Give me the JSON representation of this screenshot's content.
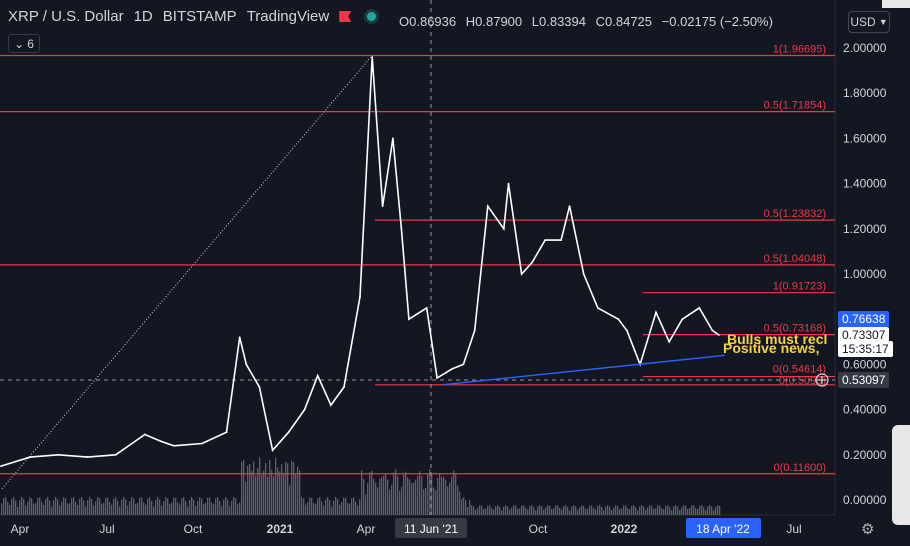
{
  "header": {
    "symbol": "XRP / U.S. Dollar",
    "interval": "1D",
    "exchange": "BITSTAMP",
    "provider": "TradingView",
    "ohlc": {
      "o_label": "O",
      "open": "0.86936",
      "h_label": "H",
      "high": "0.87900",
      "l_label": "L",
      "low": "0.83394",
      "c_label": "C",
      "close": "0.84725",
      "change": "−0.02175 (−2.50%)"
    },
    "indicators_count": "6",
    "currency_button": "USD"
  },
  "colors": {
    "background": "#131722",
    "candles": "#ffffff",
    "fib_lines": "#f23645",
    "trendline": "#2962ff",
    "text": "#d1d4dc"
  },
  "chart_data": {
    "type": "line",
    "title": "XRP / U.S. Dollar",
    "xlabel": "",
    "ylabel": "",
    "ylim": [
      -0.1,
      2.1
    ],
    "y_ticks": [
      "2.00000",
      "1.80000",
      "1.60000",
      "1.40000",
      "1.20000",
      "1.00000",
      "0.80000",
      "0.60000",
      "0.40000",
      "0.20000",
      "0.00000"
    ],
    "x_ticks": [
      "Apr",
      "Jul",
      "Oct",
      "2021",
      "Apr",
      "Oct",
      "2022",
      "Jul"
    ],
    "crosshair_x_label": "11 Jun '21",
    "cursor_x_label": "18 Apr '22",
    "series": [
      {
        "x": [
          "2020-03-15",
          "2020-04-15",
          "2020-05-15",
          "2020-06-15",
          "2020-07-15",
          "2020-08-15",
          "2020-09-01",
          "2020-09-15",
          "2020-10-15",
          "2020-11-10",
          "2020-11-24",
          "2020-12-01",
          "2020-12-15",
          "2020-12-29",
          "2021-01-15",
          "2021-02-01",
          "2021-02-15",
          "2021-03-01",
          "2021-03-15",
          "2021-04-01",
          "2021-04-14",
          "2021-04-25",
          "2021-05-06",
          "2021-05-15",
          "2021-05-23",
          "2021-06-11",
          "2021-06-22",
          "2021-07-08",
          "2021-07-20",
          "2021-08-01",
          "2021-08-15",
          "2021-09-01",
          "2021-09-06",
          "2021-09-20",
          "2021-10-01",
          "2021-10-15",
          "2021-11-01",
          "2021-11-10",
          "2021-11-25",
          "2021-12-10",
          "2022-01-01",
          "2022-01-10",
          "2022-01-24",
          "2022-02-10",
          "2022-02-24",
          "2022-03-10",
          "2022-03-28",
          "2022-04-11",
          "2022-04-18"
        ],
        "y": [
          0.15,
          0.19,
          0.2,
          0.19,
          0.2,
          0.29,
          0.26,
          0.24,
          0.25,
          0.3,
          0.72,
          0.6,
          0.5,
          0.22,
          0.3,
          0.4,
          0.55,
          0.42,
          0.5,
          0.9,
          1.96,
          1.3,
          1.6,
          1.2,
          0.8,
          0.85,
          0.54,
          0.58,
          0.6,
          0.75,
          1.3,
          1.2,
          1.4,
          1.0,
          1.05,
          1.15,
          1.15,
          1.3,
          1.0,
          0.85,
          0.8,
          0.75,
          0.6,
          0.83,
          0.7,
          0.8,
          0.85,
          0.75,
          0.73
        ]
      }
    ],
    "last_price_label": "0.76638",
    "current_price_label": "0.73307",
    "countdown_label": "15:35:17",
    "cursor_price_label": "0.53097",
    "fib_levels": [
      {
        "label": "1(1.96695)",
        "value": 1.96695
      },
      {
        "label": "0.5(1.71854)",
        "value": 1.71854
      },
      {
        "label": "0.5(1.23832)",
        "value": 1.23832
      },
      {
        "label": "0.5(1.04048)",
        "value": 1.04048
      },
      {
        "label": "1(0.91723)",
        "value": 0.91723
      },
      {
        "label": "0.5(0.73168)",
        "value": 0.73168
      },
      {
        "label": "0(0.54614)",
        "value": 0.54614
      },
      {
        "label": "0(0.5096)",
        "value": 0.5096
      },
      {
        "label": "0(0.11600)",
        "value": 0.116
      }
    ],
    "annotations": [
      "Bulls must recl",
      "Positive news, "
    ]
  }
}
